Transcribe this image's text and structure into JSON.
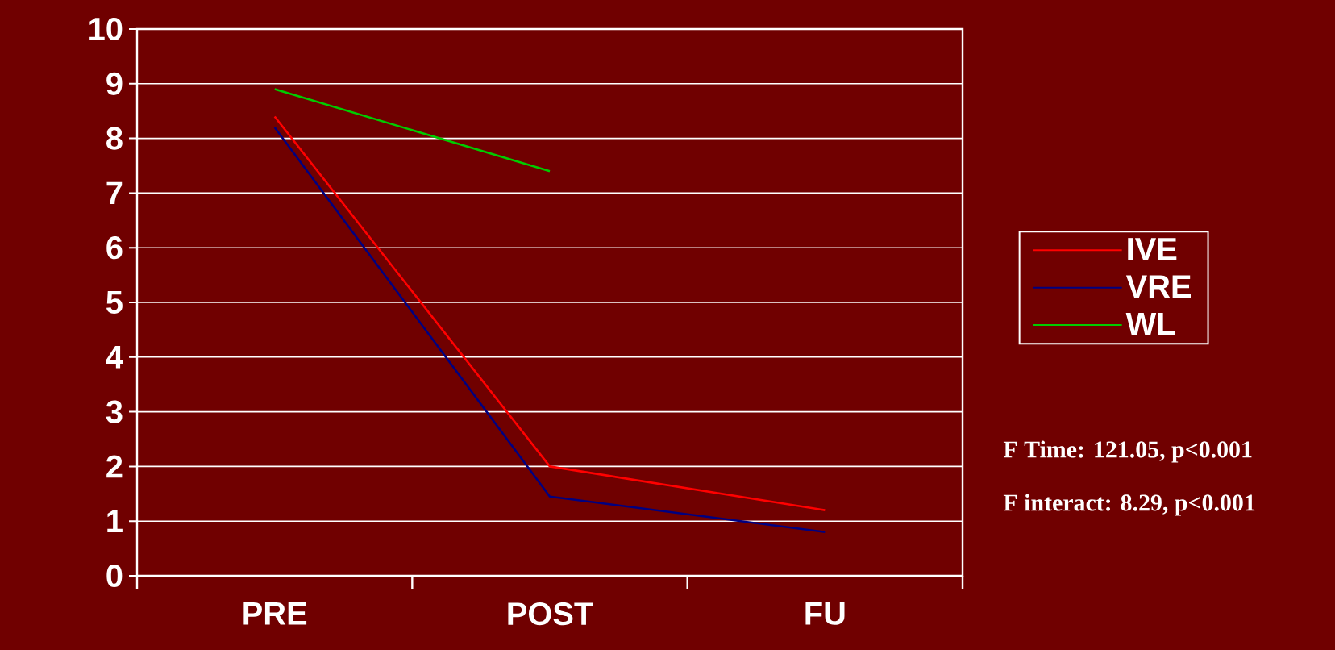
{
  "chart_data": {
    "type": "line",
    "categories": [
      "PRE",
      "POST",
      "FU"
    ],
    "series": [
      {
        "name": "IVE",
        "color": "#ff0000",
        "values": [
          8.4,
          2.0,
          1.2
        ]
      },
      {
        "name": "VRE",
        "color": "#000080",
        "values": [
          8.2,
          1.45,
          0.8
        ]
      },
      {
        "name": "WL",
        "color": "#00cc00",
        "values": [
          8.9,
          7.4,
          null
        ]
      }
    ],
    "ylim": [
      0,
      10
    ],
    "yticks": [
      0,
      1,
      2,
      3,
      4,
      5,
      6,
      7,
      8,
      9,
      10
    ],
    "grid": "y",
    "legend": "right",
    "marker": "none",
    "line_style": "solid",
    "annotations": [
      "F Time: 121.05, p<0.001",
      "F interact: 8.29, p<0.001"
    ]
  }
}
